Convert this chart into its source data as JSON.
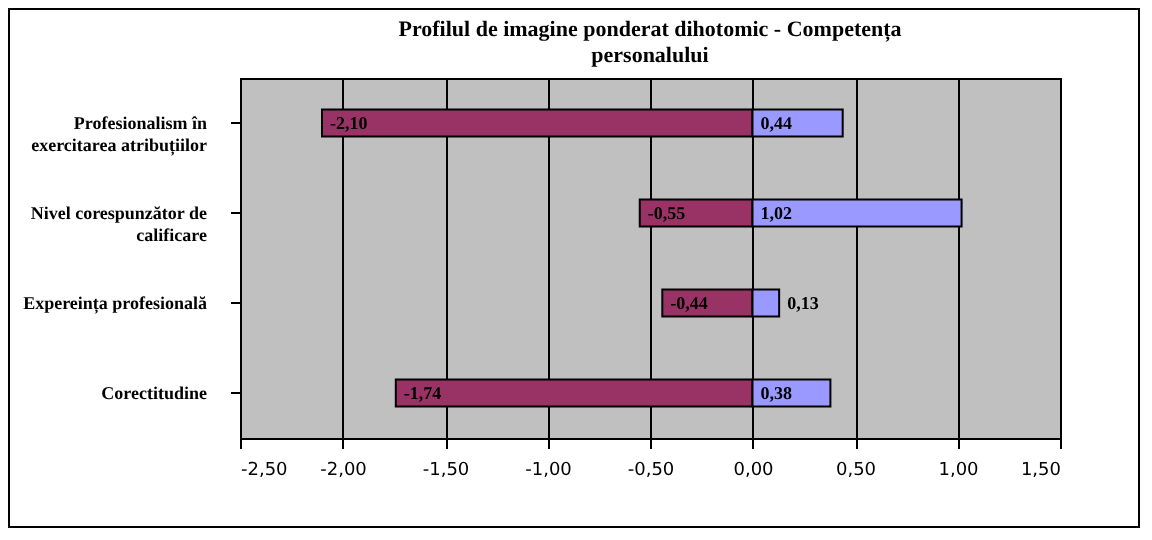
{
  "chart_data": {
    "type": "bar",
    "title": "Profilul de imagine ponderat dihotomic - Competența personalului",
    "orientation": "horizontal",
    "stacked": true,
    "categories": [
      "Profesionalism în exercitarea atribuțiilor",
      "Nivel corespunzător de calificare",
      "Expereința profesională",
      "Corectitudine"
    ],
    "series": [
      {
        "color": "#993366",
        "values": [
          -2.1,
          -0.55,
          -0.44,
          -1.74
        ],
        "value_labels": [
          "-2,10",
          "-0,55",
          "-0,44",
          "-1,74"
        ]
      },
      {
        "color": "#9999ff",
        "values": [
          0.44,
          1.02,
          0.13,
          0.38
        ],
        "value_labels": [
          "0,44",
          "1,02",
          "0,13",
          "0,38"
        ]
      }
    ],
    "xlim": [
      -2.5,
      1.5
    ],
    "xticks": [
      {
        "value": -2.5,
        "label": "-2,50"
      },
      {
        "value": -2,
        "label": "-2,00"
      },
      {
        "value": -1.5,
        "label": "-1,50"
      },
      {
        "value": -1,
        "label": "-1,00"
      },
      {
        "value": -0.5,
        "label": "-0,50"
      },
      {
        "value": 0,
        "label": "0,00"
      },
      {
        "value": 0.5,
        "label": "0,50"
      },
      {
        "value": 1,
        "label": "1,00"
      },
      {
        "value": 1.5,
        "label": "1,50"
      }
    ],
    "grid": "x"
  }
}
